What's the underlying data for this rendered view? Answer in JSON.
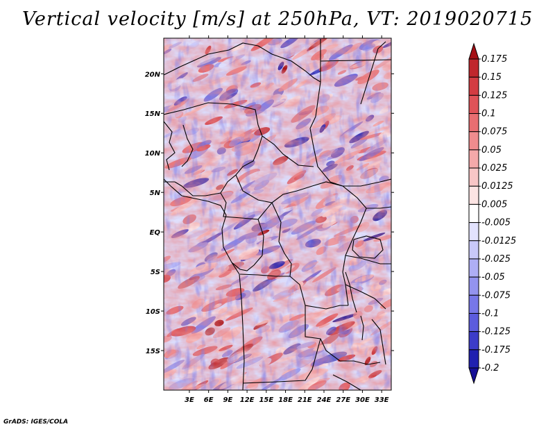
{
  "chart_data": {
    "type": "heatmap",
    "title": "Vertical velocity [m/s] at 250hPa, VT: 2019020715",
    "variable": "Vertical velocity",
    "units": "m/s",
    "level": "250hPa",
    "valid_time": "2019020715",
    "x_axis": {
      "range": [
        -1,
        34.5
      ],
      "tick_values": [
        3,
        6,
        9,
        12,
        15,
        18,
        21,
        24,
        27,
        30,
        33
      ],
      "tick_labels": [
        "3E",
        "6E",
        "9E",
        "12E",
        "15E",
        "18E",
        "21E",
        "24E",
        "27E",
        "30E",
        "33E"
      ]
    },
    "y_axis": {
      "range": [
        -20,
        24.5
      ],
      "tick_values": [
        20,
        15,
        10,
        5,
        0,
        -5,
        -10,
        -15
      ],
      "tick_labels": [
        "20N",
        "15N",
        "10N",
        "5N",
        "EQ",
        "5S",
        "10S",
        "15S"
      ]
    },
    "colorbar": {
      "levels": [
        "0.175",
        "0.15",
        "0.125",
        "0.1",
        "0.075",
        "0.05",
        "0.025",
        "0.0125",
        "0.005",
        "-0.005",
        "-0.0125",
        "-0.025",
        "-0.05",
        "-0.075",
        "-0.1",
        "-0.125",
        "-0.175",
        "-0.2"
      ],
      "colors": [
        "#a51015",
        "#c0272d",
        "#d33c42",
        "#e05358",
        "#e86e71",
        "#ef8c8e",
        "#f4a9aa",
        "#f8c6c6",
        "#fce4e3",
        "#ffffff",
        "#e2e2fd",
        "#c9c9f9",
        "#aeaef5",
        "#9393ef",
        "#7777e8",
        "#5c5cdd",
        "#3c3cc8",
        "#2020b0",
        "#160f96"
      ]
    }
  },
  "footer": "GrADS: IGES/COLA"
}
